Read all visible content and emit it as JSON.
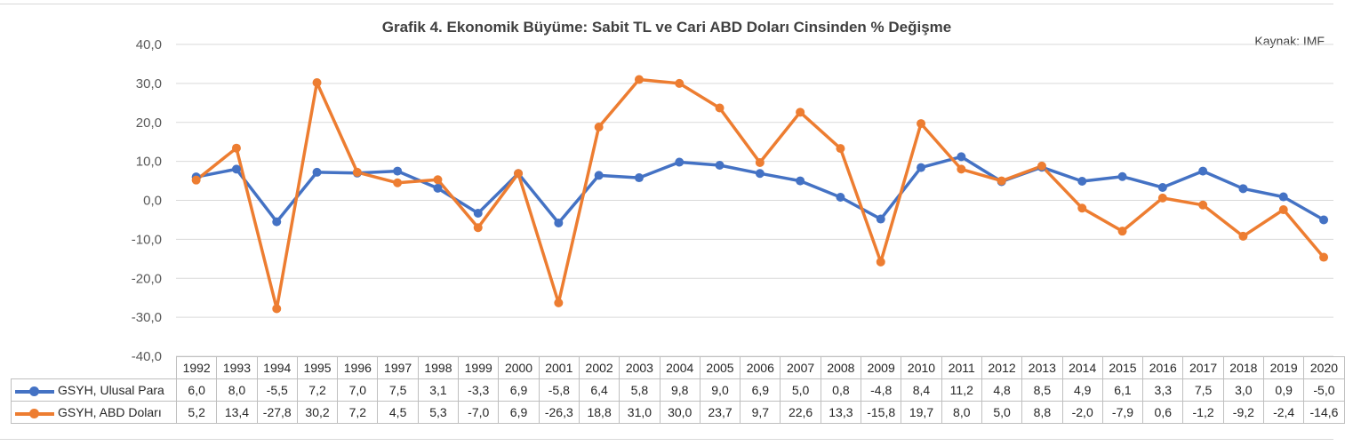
{
  "chart_data": {
    "type": "line",
    "title": "Grafik 4. Ekonomik Büyüme: Sabit TL ve Cari ABD Doları Cinsinden % Değişme",
    "source": "Kaynak: IMF",
    "categories": [
      "1992",
      "1993",
      "1994",
      "1995",
      "1996",
      "1997",
      "1998",
      "1999",
      "2000",
      "2001",
      "2002",
      "2003",
      "2004",
      "2005",
      "2006",
      "2007",
      "2008",
      "2009",
      "2010",
      "2011",
      "2012",
      "2013",
      "2014",
      "2015",
      "2016",
      "2017",
      "2018",
      "2019",
      "2020"
    ],
    "y_ticks": [
      "40,0",
      "30,0",
      "20,0",
      "10,0",
      "0,0",
      "-10,0",
      "-20,0",
      "-30,0",
      "-40,0"
    ],
    "ylim": [
      -40,
      40
    ],
    "grid": true,
    "legend": "data-table",
    "series": [
      {
        "name": "GSYH, Ulusal Para",
        "color": "#4472c4",
        "values": [
          6.0,
          8.0,
          -5.5,
          7.2,
          7.0,
          7.5,
          3.1,
          -3.3,
          6.9,
          -5.8,
          6.4,
          5.8,
          9.8,
          9.0,
          6.9,
          5.0,
          0.8,
          -4.8,
          8.4,
          11.2,
          4.8,
          8.5,
          4.9,
          6.1,
          3.3,
          7.5,
          3.0,
          0.9,
          -5.0
        ],
        "labels": [
          "6,0",
          "8,0",
          "-5,5",
          "7,2",
          "7,0",
          "7,5",
          "3,1",
          "-3,3",
          "6,9",
          "-5,8",
          "6,4",
          "5,8",
          "9,8",
          "9,0",
          "6,9",
          "5,0",
          "0,8",
          "-4,8",
          "8,4",
          "11,2",
          "4,8",
          "8,5",
          "4,9",
          "6,1",
          "3,3",
          "7,5",
          "3,0",
          "0,9",
          "-5,0"
        ]
      },
      {
        "name": "GSYH, ABD Doları",
        "color": "#ed7d31",
        "values": [
          5.2,
          13.4,
          -27.8,
          30.2,
          7.2,
          4.5,
          5.3,
          -7.0,
          6.9,
          -26.3,
          18.8,
          31.0,
          30.0,
          23.7,
          9.7,
          22.6,
          13.3,
          -15.8,
          19.7,
          8.0,
          5.0,
          8.8,
          -2.0,
          -7.9,
          0.6,
          -1.2,
          -9.2,
          -2.4,
          -14.6
        ],
        "labels": [
          "5,2",
          "13,4",
          "-27,8",
          "30,2",
          "7,2",
          "4,5",
          "5,3",
          "-7,0",
          "6,9",
          "-26,3",
          "18,8",
          "31,0",
          "30,0",
          "23,7",
          "9,7",
          "22,6",
          "13,3",
          "-15,8",
          "19,7",
          "8,0",
          "5,0",
          "8,8",
          "-2,0",
          "-7,9",
          "0,6",
          "-1,2",
          "-9,2",
          "-2,4",
          "-14,6"
        ]
      }
    ]
  }
}
